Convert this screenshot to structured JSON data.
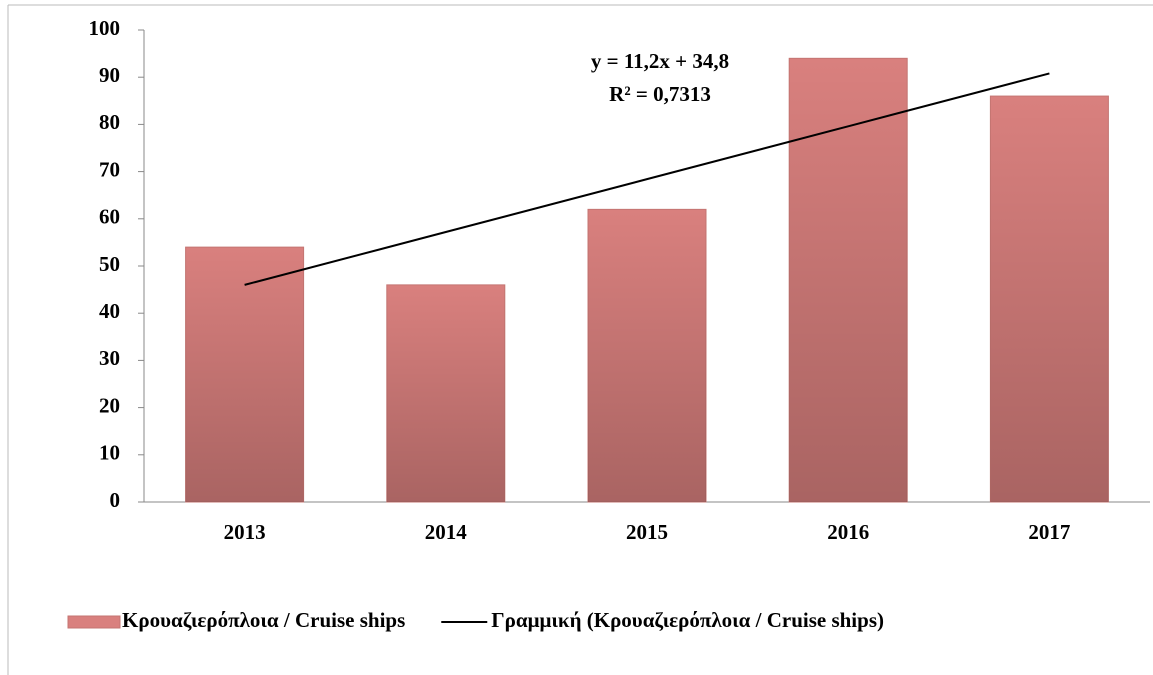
{
  "chart_data": {
    "type": "bar",
    "categories": [
      "2013",
      "2014",
      "2015",
      "2016",
      "2017"
    ],
    "series": [
      {
        "name": "Κρουαζιερόπλοια / Cruise ships",
        "type": "bar",
        "color": "#d9807e",
        "values": [
          54,
          46,
          62,
          94,
          86
        ]
      },
      {
        "name": "Γραμμική (Κρουαζιερόπλοια / Cruise ships)",
        "type": "line",
        "color": "#000000",
        "values": [
          46,
          57.2,
          68.4,
          79.6,
          90.8
        ]
      }
    ],
    "annotations": [
      "y = 11,2x + 34,8",
      "R² = 0,7313"
    ],
    "ylim": [
      0,
      100
    ],
    "yticks": [
      0,
      10,
      20,
      30,
      40,
      50,
      60,
      70,
      80,
      90,
      100
    ],
    "grid": false,
    "legend": "bottom"
  }
}
